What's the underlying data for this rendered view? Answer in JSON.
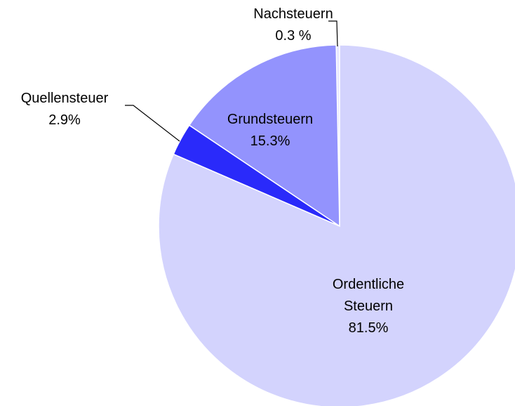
{
  "chart_data": {
    "type": "pie",
    "categories": [
      "Ordentliche Steuern",
      "Quellensteuer",
      "Grundsteuern",
      "Nachsteuern"
    ],
    "values": [
      81.5,
      2.9,
      15.3,
      0.3
    ],
    "value_labels": [
      "81.5%",
      "2.9%",
      "15.3%",
      "0.3 %"
    ],
    "colors": [
      "#d3d3fd",
      "#2a2afa",
      "#9393fd",
      "#e6e6ff"
    ]
  }
}
